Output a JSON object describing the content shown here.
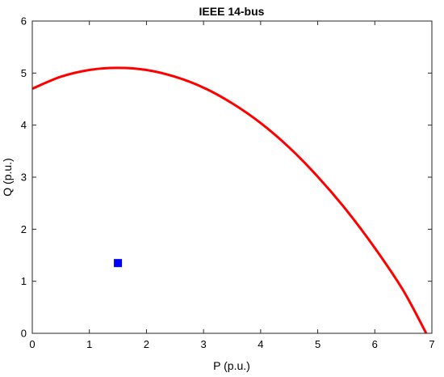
{
  "chart_data": {
    "type": "line",
    "title": "IEEE 14-bus",
    "xlabel": "P (p.u.)",
    "ylabel": "Q (p.u.)",
    "xlim": [
      0,
      7
    ],
    "ylim": [
      0,
      6
    ],
    "xticks": [
      "0",
      "1",
      "2",
      "3",
      "4",
      "5",
      "6",
      "7"
    ],
    "yticks": [
      "0",
      "1",
      "2",
      "3",
      "4",
      "5",
      "6"
    ],
    "grid": false,
    "series": [
      {
        "type": "line",
        "color": "#ff0000",
        "x": [
          0,
          0.5,
          1.0,
          1.5,
          2.0,
          2.5,
          3.0,
          3.5,
          4.0,
          4.5,
          5.0,
          5.5,
          6.0,
          6.5,
          6.9
        ],
        "y": [
          4.7,
          4.93,
          5.06,
          5.1,
          5.06,
          4.93,
          4.72,
          4.42,
          4.04,
          3.57,
          3.01,
          2.37,
          1.64,
          0.82,
          0.0
        ]
      },
      {
        "type": "scatter",
        "marker": "square",
        "color": "#0000ff",
        "x": [
          1.5
        ],
        "y": [
          1.35
        ]
      }
    ]
  }
}
